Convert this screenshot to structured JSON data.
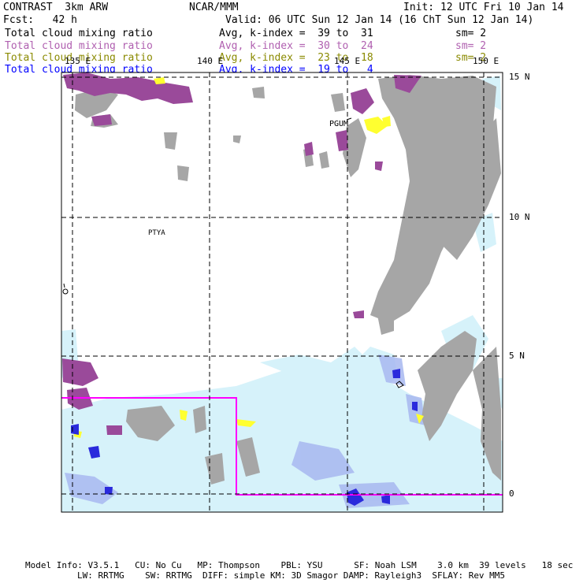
{
  "header": {
    "left1": "CONTRAST  3km ARW",
    "center1": "NCAR/MMM",
    "right1": "Init: 12 UTC Fri 10 Jan 14",
    "left2": "Fcst:   42 h",
    "center2": "Valid: 06 UTC Sun 12 Jan 14 (16 ChT Sun 12 Jan 14)"
  },
  "legend": [
    {
      "field": "Total cloud mixing ratio",
      "range": "Avg, k-index =  39 to  31",
      "sm": "sm= 2",
      "color": "#000000"
    },
    {
      "field": "Total cloud mixing ratio",
      "range": "Avg, k-index =  30 to  24",
      "sm": "sm= 2",
      "color": "#b060b0"
    },
    {
      "field": "Total cloud mixing ratio",
      "range": "Avg, k-index =  23 to  18",
      "sm": "sm= 2",
      "color": "#8a8a00"
    },
    {
      "field": "Total cloud mixing ratio",
      "range": "Avg, k-index =  19 to   4",
      "sm": "",
      "color": "#0000ff"
    }
  ],
  "map": {
    "lon_labels": [
      "135 E",
      "140 E",
      "145 E",
      "150 E"
    ],
    "lat_labels": [
      "15 N",
      "10 N",
      "5 N",
      "0"
    ],
    "stations": [
      "PGUM",
      "PTYA"
    ],
    "colors": {
      "land": "#a6a6a6",
      "low_cloud": "#d6f2fa",
      "mid_cloud": "#9a4a9a",
      "high_cloud": "#ffff30",
      "deep_cloud": "#2a2adc",
      "box": "#ff00ff"
    }
  },
  "footer": {
    "line1": "Model Info: V3.5.1   CU: No Cu   MP: Thompson    PBL: YSU      SF: Noah LSM    3.0 km  39 levels   18 sec",
    "line2": "LW: RRTMG    SW: RRTMG  DIFF: simple KM: 3D Smagor DAMP: Rayleigh3  SFLAY: Rev MM5"
  }
}
